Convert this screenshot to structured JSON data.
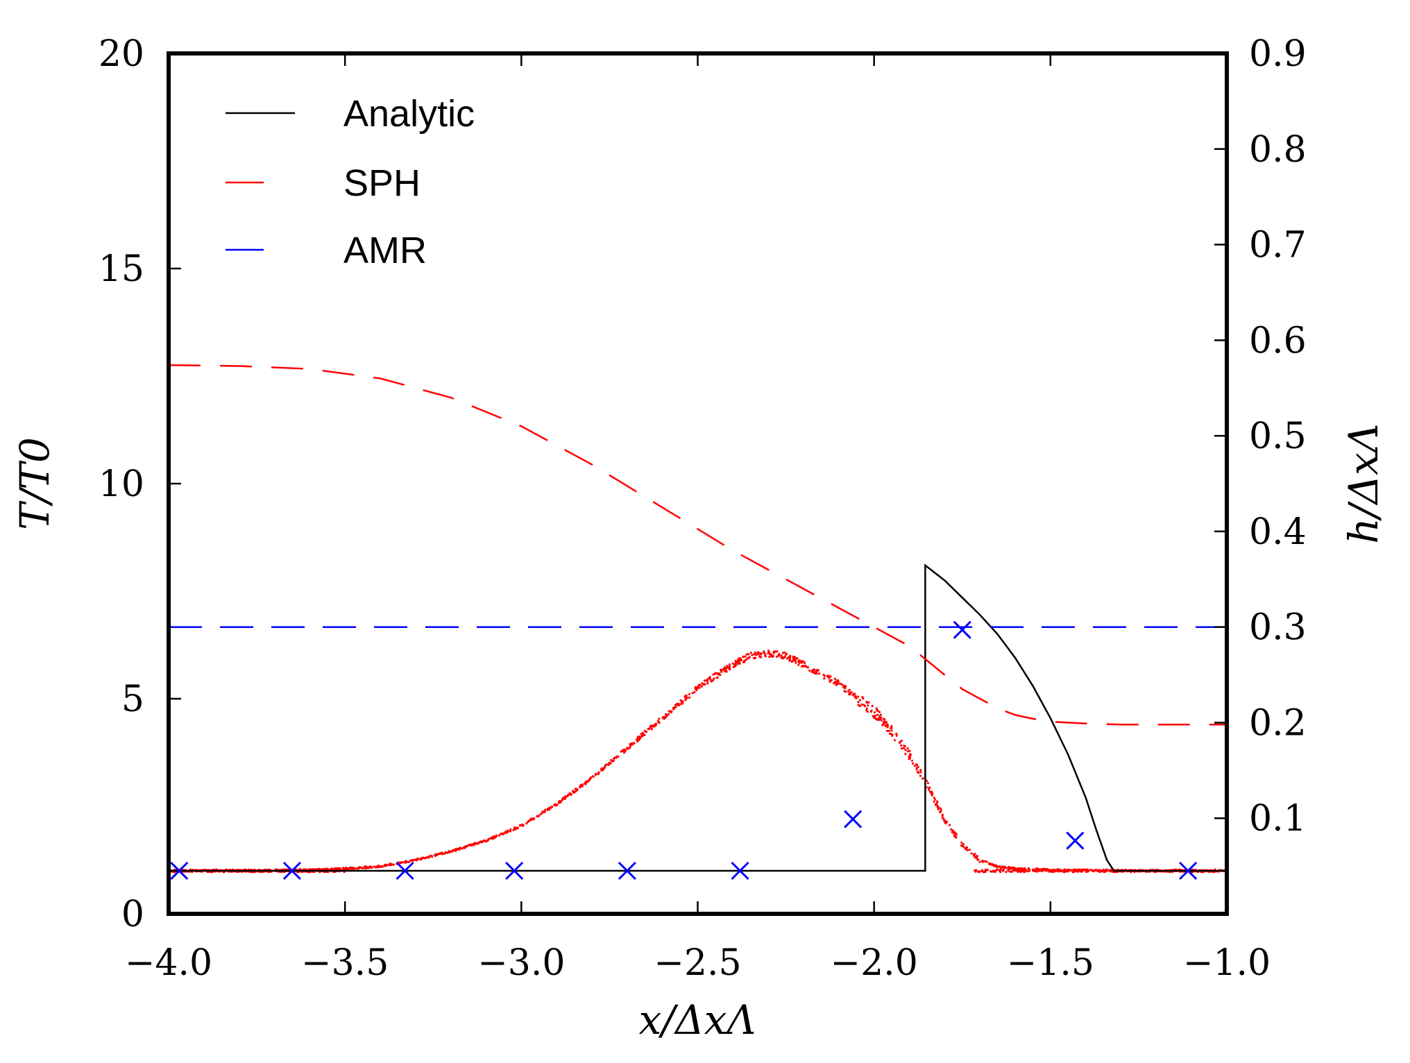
{
  "chart_data": {
    "type": "line",
    "title": "",
    "xlabel": "x/ΔxΛ",
    "ylabel_left": "T/T0",
    "ylabel_right": "h/ΔxΛ",
    "xlim": [
      -4.0,
      -1.0
    ],
    "ylim_left": [
      0,
      20
    ],
    "ylim_right": [
      0.0,
      0.9
    ],
    "x_ticks": [
      "−4.0",
      "−3.5",
      "−3.0",
      "−2.5",
      "−2.0",
      "−1.5",
      "−1.0"
    ],
    "y_left_ticks": [
      "0",
      "5",
      "10",
      "15",
      "20"
    ],
    "y_right_ticks": [
      "0.1",
      "0.2",
      "0.3",
      "0.4",
      "0.5",
      "0.6",
      "0.7",
      "0.8",
      "0.9"
    ],
    "legend": {
      "location": "top-left",
      "entries": [
        "Analytic",
        "SPH",
        "AMR"
      ]
    },
    "colors": {
      "analytic": "#000000",
      "sph": "#ff0000",
      "amr": "#0000ff"
    },
    "series": [
      {
        "name": "Analytic",
        "axis": "left",
        "style": "solid",
        "x": [
          -4.0,
          -1.855,
          -1.855,
          -1.8,
          -1.75,
          -1.7,
          -1.65,
          -1.6,
          -1.55,
          -1.5,
          -1.45,
          -1.4,
          -1.37,
          -1.34,
          -1.32,
          -1.0
        ],
        "y": [
          1.0,
          1.0,
          8.1,
          7.75,
          7.35,
          6.95,
          6.5,
          5.95,
          5.3,
          4.55,
          3.7,
          2.7,
          1.95,
          1.25,
          1.0,
          1.0
        ]
      },
      {
        "name": "SPH",
        "axis": "right",
        "style": "dashed",
        "x": [
          -4.0,
          -3.8,
          -3.6,
          -3.4,
          -3.2,
          -3.0,
          -2.8,
          -2.6,
          -2.4,
          -2.2,
          -2.0,
          -1.9,
          -1.85,
          -1.8,
          -1.75,
          -1.7,
          -1.65,
          -1.6,
          -1.55,
          -1.5,
          -1.45,
          -1.4,
          -1.3,
          -1.2,
          -1.0
        ],
        "y": [
          0.574,
          0.573,
          0.57,
          0.56,
          0.54,
          0.51,
          0.47,
          0.425,
          0.38,
          0.34,
          0.3,
          0.28,
          0.265,
          0.25,
          0.235,
          0.225,
          0.215,
          0.208,
          0.204,
          0.201,
          0.2,
          0.199,
          0.198,
          0.198,
          0.198
        ]
      },
      {
        "name": "SPH particles",
        "axis": "left",
        "style": "points",
        "x": [
          -4.0,
          -3.8,
          -3.6,
          -3.5,
          -3.4,
          -3.3,
          -3.2,
          -3.1,
          -3.0,
          -2.9,
          -2.8,
          -2.7,
          -2.6,
          -2.5,
          -2.4,
          -2.35,
          -2.3,
          -2.25,
          -2.2,
          -2.1,
          -2.0,
          -1.95,
          -1.9,
          -1.85,
          -1.8,
          -1.75,
          -1.7,
          -1.65,
          -1.6,
          -1.5,
          -1.3,
          -1.0
        ],
        "y": [
          1.0,
          1.0,
          1.02,
          1.05,
          1.1,
          1.25,
          1.45,
          1.7,
          2.05,
          2.55,
          3.15,
          3.85,
          4.55,
          5.25,
          5.8,
          6.0,
          6.05,
          6.0,
          5.8,
          5.35,
          4.7,
          4.25,
          3.7,
          3.0,
          2.2,
          1.6,
          1.25,
          1.1,
          1.05,
          1.02,
          1.0,
          1.0
        ]
      },
      {
        "name": "AMR",
        "axis": "right",
        "style": "dashed",
        "x": [
          -4.0,
          -1.0
        ],
        "y": [
          0.3,
          0.3
        ]
      },
      {
        "name": "AMR cells",
        "axis": "left",
        "style": "markers-x",
        "x": [
          -3.97,
          -3.65,
          -3.33,
          -3.02,
          -2.7,
          -2.38,
          -2.06,
          -1.75,
          -1.43,
          -1.11
        ],
        "y": [
          1.0,
          1.0,
          1.0,
          1.0,
          1.0,
          1.0,
          2.2,
          6.6,
          1.7,
          1.0
        ]
      }
    ]
  }
}
